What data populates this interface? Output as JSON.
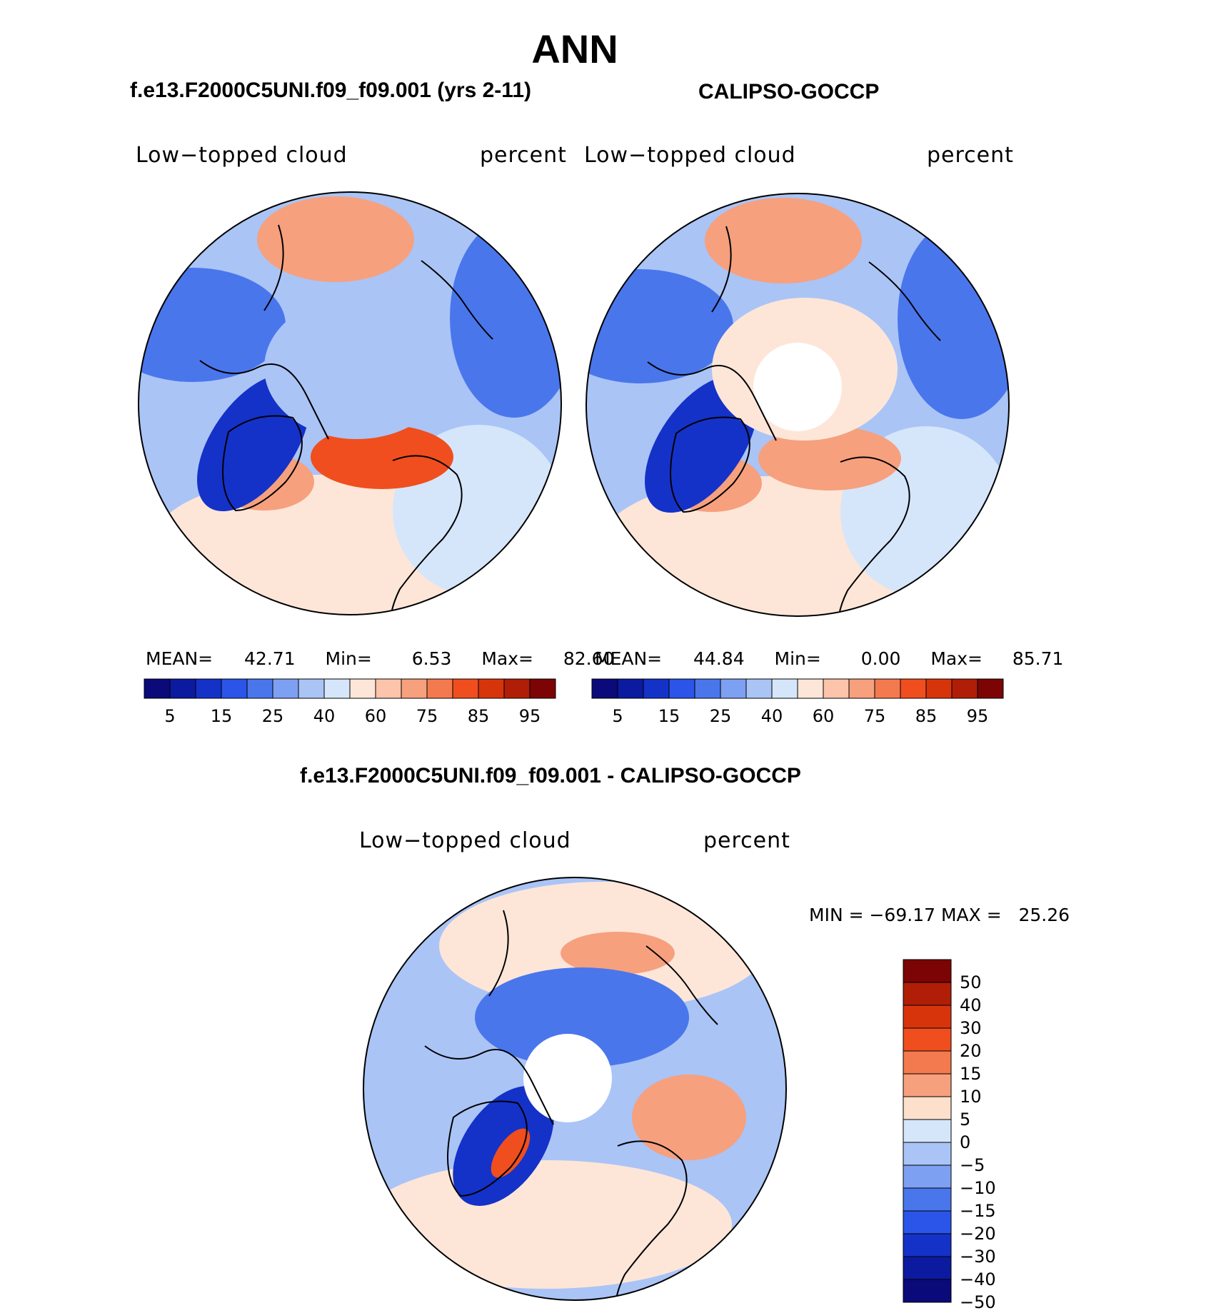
{
  "figure_title": "ANN",
  "panels": [
    {
      "case": "f.e13.F2000C5UNI.f09_f09.001 (yrs 2-11)",
      "variable": "Low−topped cloud",
      "units": "percent",
      "stats": {
        "mean_label": "MEAN=",
        "mean": "42.71",
        "min_label": "Min=",
        "min": "6.53",
        "max_label": "Max=",
        "max": "82.60"
      }
    },
    {
      "case": "CALIPSO-GOCCP",
      "variable": "Low−topped cloud",
      "units": "percent",
      "stats": {
        "mean_label": "MEAN=",
        "mean": "44.84",
        "min_label": "Min=",
        "min": "0.00",
        "max_label": "Max=",
        "max": "85.71"
      }
    }
  ],
  "difference": {
    "title": "f.e13.F2000C5UNI.f09_f09.001 - CALIPSO-GOCCP",
    "variable": "Low−topped cloud",
    "units": "percent",
    "minmax": "MIN = −69.17 MAX =   25.26"
  },
  "colorbar_abs": {
    "colors": [
      "#0a0a7a",
      "#0c1aa0",
      "#1432c8",
      "#2a55e8",
      "#4a76ec",
      "#7ea0f2",
      "#aac4f6",
      "#d5e6fa",
      "#fde6d8",
      "#fbc4ab",
      "#f6a07e",
      "#f37a4e",
      "#f04e1e",
      "#d8340c",
      "#b01e08",
      "#7c0404"
    ],
    "tick_labels": [
      "5",
      "15",
      "25",
      "40",
      "60",
      "75",
      "85",
      "95"
    ]
  },
  "colorbar_diff": {
    "colors": [
      "#7c0404",
      "#b01e08",
      "#d8340c",
      "#f04e1e",
      "#f37a4e",
      "#f6a07e",
      "#fde0cc",
      "#d5e6fa",
      "#aac4f6",
      "#7ea0f2",
      "#4a76ec",
      "#2a55e8",
      "#1432c8",
      "#0c1aa0",
      "#0a0a7a"
    ],
    "tick_labels": [
      "50",
      "40",
      "30",
      "20",
      "15",
      "10",
      "5",
      "0",
      "−5",
      "−10",
      "−15",
      "−20",
      "−30",
      "−40",
      "−50"
    ]
  },
  "map_colors": {
    "deep_blue": "#1432c8",
    "mid_blue": "#4a76ec",
    "light_blue": "#aac4f6",
    "pale_blue": "#d5e6fa",
    "pale_red": "#fde6d8",
    "light_red": "#f6a07e",
    "mid_red": "#f04e1e"
  }
}
